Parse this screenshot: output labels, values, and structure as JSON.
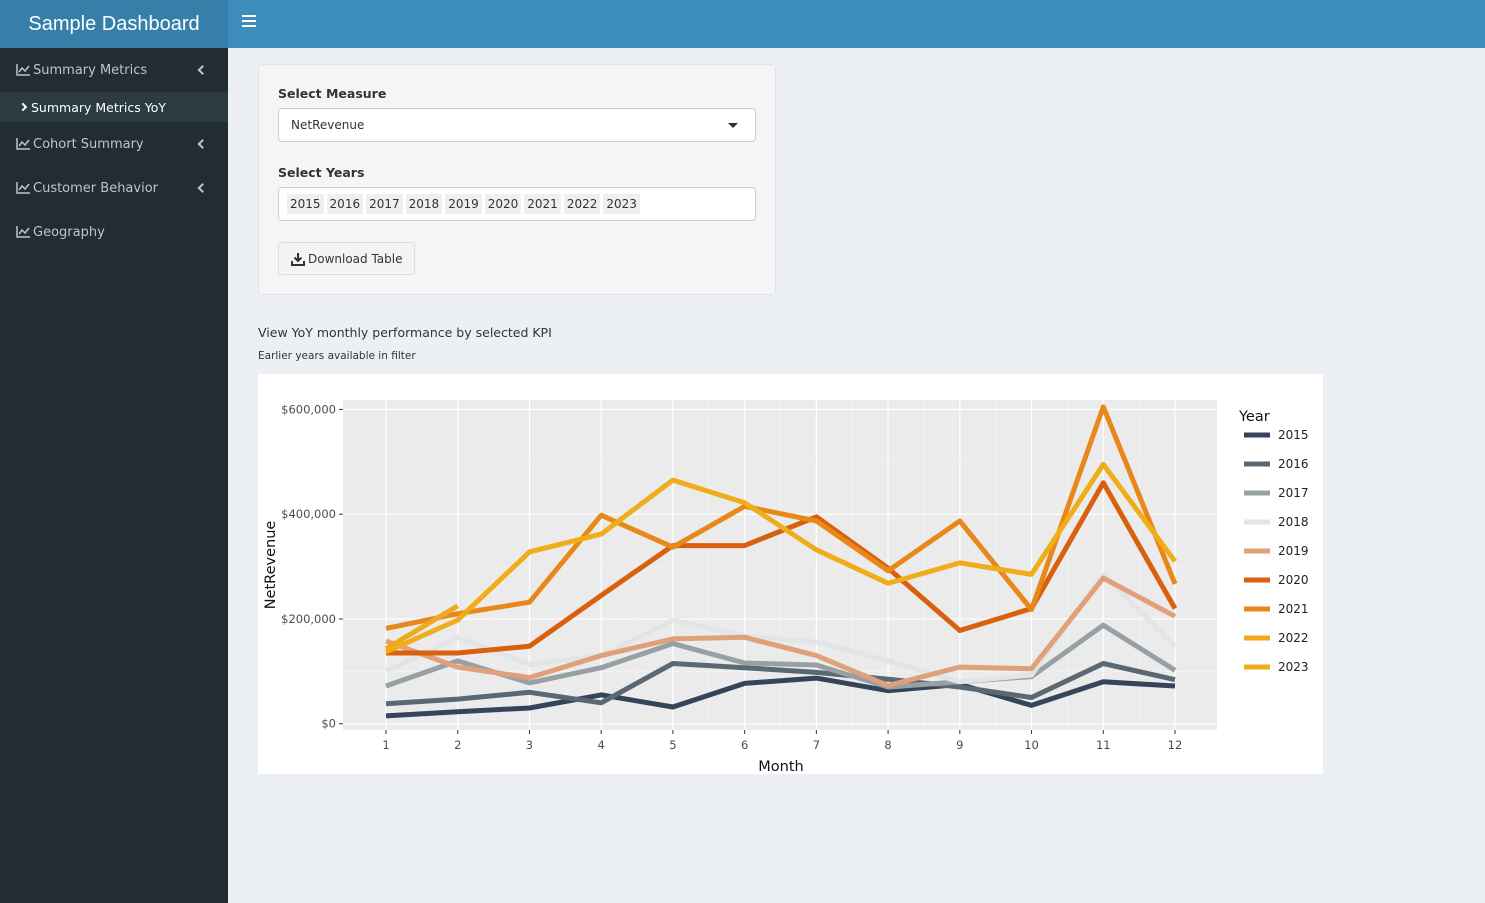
{
  "header": {
    "title": "Sample Dashboard",
    "menu_icon": "bars-icon"
  },
  "sidebar": {
    "items": [
      {
        "label": "Summary Metrics",
        "icon": "line-chart-icon",
        "expandable": true
      },
      {
        "label": "Summary Metrics YoY",
        "icon": "chevron-right-icon",
        "active": true
      },
      {
        "label": "Cohort Summary",
        "icon": "line-chart-icon",
        "expandable": true
      },
      {
        "label": "Customer Behavior",
        "icon": "line-chart-icon",
        "expandable": true
      },
      {
        "label": "Geography",
        "icon": "line-chart-icon",
        "expandable": false
      }
    ]
  },
  "controls": {
    "measure_label": "Select Measure",
    "measure_value": "NetRevenue",
    "years_label": "Select Years",
    "years_selected": [
      "2015",
      "2016",
      "2017",
      "2018",
      "2019",
      "2020",
      "2021",
      "2022",
      "2023"
    ],
    "download_label": "Download Table"
  },
  "description": "View YoY monthly performance by selected KPI",
  "note": "Earlier years available in filter",
  "chart_data": {
    "type": "line",
    "xlabel": "Month",
    "ylabel": "NetRevenue",
    "legend_title": "Year",
    "legend_position": "right",
    "x": [
      1,
      2,
      3,
      4,
      5,
      6,
      7,
      8,
      9,
      10,
      11,
      12
    ],
    "xticks": [
      "1",
      "2",
      "3",
      "4",
      "5",
      "6",
      "7",
      "8",
      "9",
      "10",
      "11",
      "12"
    ],
    "ylim": [
      -12000,
      618000
    ],
    "yticks": [
      0,
      200000,
      400000,
      600000
    ],
    "ytick_labels": [
      "$0",
      "$200,000",
      "$400,000",
      "$600,000"
    ],
    "grid": true,
    "series": [
      {
        "name": "2015",
        "color": "#344459",
        "values": [
          15000,
          23000,
          30000,
          55000,
          32000,
          77000,
          87000,
          63000,
          75000,
          35000,
          80000,
          72000
        ]
      },
      {
        "name": "2016",
        "color": "#5a6874",
        "values": [
          38000,
          47000,
          60000,
          40000,
          115000,
          107000,
          98000,
          85000,
          70000,
          50000,
          115000,
          84000
        ]
      },
      {
        "name": "2017",
        "color": "#97a1a5",
        "values": [
          72000,
          120000,
          78000,
          107000,
          153000,
          116000,
          112000,
          70000,
          80000,
          90000,
          188000,
          102000
        ]
      },
      {
        "name": "2018",
        "color": "#e1e5e6",
        "values": [
          100000,
          165000,
          113000,
          130000,
          198000,
          167000,
          156000,
          120000,
          80000,
          93000,
          285000,
          148000
        ]
      },
      {
        "name": "2019",
        "color": "#e0a07a",
        "values": [
          158000,
          108000,
          88000,
          130000,
          162000,
          165000,
          130000,
          73000,
          108000,
          105000,
          278000,
          205000
        ]
      },
      {
        "name": "2020",
        "color": "#d9600f",
        "values": [
          135000,
          135000,
          148000,
          245000,
          340000,
          340000,
          395000,
          297000,
          178000,
          220000,
          460000,
          220000
        ]
      },
      {
        "name": "2021",
        "color": "#e8881a",
        "values": [
          182000,
          210000,
          232000,
          398000,
          337000,
          415000,
          387000,
          292000,
          387000,
          218000,
          605000,
          267000
        ]
      },
      {
        "name": "2022",
        "color": "#efa91e",
        "values": [
          143000,
          225000,
          null,
          null,
          null,
          null,
          null,
          null,
          null,
          null,
          null,
          null
        ]
      },
      {
        "name": "2023",
        "color": "#f0ad1a",
        "values": [
          137000,
          198000,
          328000,
          362000,
          465000,
          422000,
          332000,
          268000,
          307000,
          285000,
          495000,
          310000
        ]
      }
    ]
  }
}
